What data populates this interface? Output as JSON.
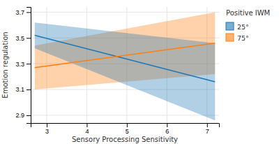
{
  "chart_data": {
    "type": "line",
    "x_label": "Sensory Processing Sensitivity",
    "y_label": "Emotion regulation",
    "legend_title": "Positive IWM",
    "x": [
      2.7,
      7.2
    ],
    "series": [
      {
        "name": "25°",
        "values": [
          3.52,
          3.16
        ],
        "ci_lower": [
          3.42,
          2.86
        ],
        "ci_upper": [
          3.62,
          3.46
        ]
      },
      {
        "name": "75°",
        "values": [
          3.27,
          3.46
        ],
        "ci_lower": [
          3.1,
          3.22
        ],
        "ci_upper": [
          3.44,
          3.7
        ]
      }
    ],
    "xlim": [
      2.6,
      7.3
    ],
    "ylim": [
      2.84,
      3.74
    ],
    "xticks": [
      3,
      4,
      5,
      6,
      7
    ],
    "yticks": [
      2.9,
      3.1,
      3.3,
      3.5,
      3.7
    ],
    "grid": true,
    "legend": "right"
  }
}
